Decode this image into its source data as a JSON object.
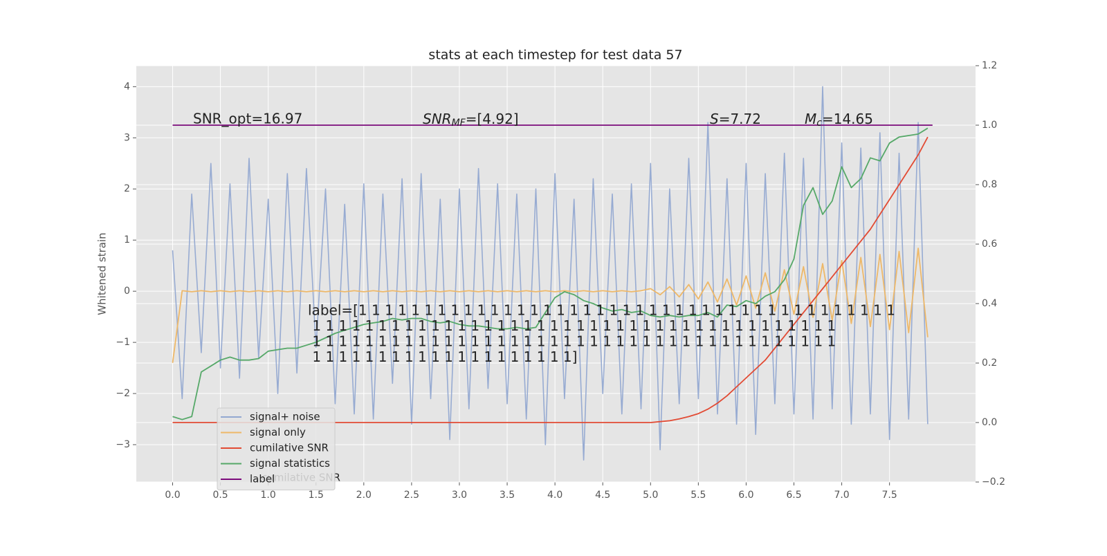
{
  "chart_data": {
    "type": "line",
    "title": "stats at each timestep for test data 57",
    "ylabel": "Whitened strain",
    "xlim": [
      -0.38,
      8.4
    ],
    "ylim": [
      -3.73,
      4.41
    ],
    "y2lim": [
      -0.2,
      1.2
    ],
    "xticks": [
      {
        "value": 0,
        "label": "0.0"
      },
      {
        "value": 0.5,
        "label": "0.5"
      },
      {
        "value": 1,
        "label": "1.0"
      },
      {
        "value": 1.5,
        "label": "1.5"
      },
      {
        "value": 2,
        "label": "2.0"
      },
      {
        "value": 2.5,
        "label": "2.5"
      },
      {
        "value": 3,
        "label": "3.0"
      },
      {
        "value": 3.5,
        "label": "3.5"
      },
      {
        "value": 4,
        "label": "4.0"
      },
      {
        "value": 4.5,
        "label": "4.5"
      },
      {
        "value": 5,
        "label": "5.0"
      },
      {
        "value": 5.5,
        "label": "5.5"
      },
      {
        "value": 6,
        "label": "6.0"
      },
      {
        "value": 6.5,
        "label": "6.5"
      },
      {
        "value": 7,
        "label": "7.0"
      },
      {
        "value": 7.5,
        "label": "7.5"
      }
    ],
    "yticks": [
      {
        "value": -3,
        "label": "−3"
      },
      {
        "value": -2,
        "label": "−2"
      },
      {
        "value": -1,
        "label": "−1"
      },
      0,
      1,
      2,
      3,
      4
    ],
    "y2ticks": [
      {
        "value": -0.2,
        "label": "−0.2"
      },
      {
        "value": 0,
        "label": "0.0"
      },
      {
        "value": 0.2,
        "label": "0.2"
      },
      {
        "value": 0.4,
        "label": "0.4"
      },
      {
        "value": 0.6,
        "label": "0.6"
      },
      {
        "value": 0.8,
        "label": "0.8"
      },
      {
        "value": 1,
        "label": "1.0"
      },
      {
        "value": 1.2,
        "label": "1.2"
      }
    ],
    "grid": true,
    "legend_loc": "lower left",
    "x": [
      0,
      0.1,
      0.2,
      0.3,
      0.4,
      0.5,
      0.6,
      0.7,
      0.8,
      0.9,
      1,
      1.1,
      1.2,
      1.3,
      1.4,
      1.5,
      1.6,
      1.7,
      1.8,
      1.9,
      2,
      2.1,
      2.2,
      2.3,
      2.4,
      2.5,
      2.6,
      2.7,
      2.8,
      2.9,
      3,
      3.1,
      3.2,
      3.3,
      3.4,
      3.5,
      3.6,
      3.7,
      3.8,
      3.9,
      4,
      4.1,
      4.2,
      4.3,
      4.4,
      4.5,
      4.6,
      4.7,
      4.8,
      4.9,
      5,
      5.1,
      5.2,
      5.3,
      5.4,
      5.5,
      5.6,
      5.7,
      5.8,
      5.9,
      6,
      6.1,
      6.2,
      6.3,
      6.4,
      6.5,
      6.6,
      6.7,
      6.8,
      6.9,
      7,
      7.1,
      7.2,
      7.3,
      7.4,
      7.5,
      7.6,
      7.7,
      7.8,
      7.9
    ],
    "series": [
      {
        "name": "signal+ noise",
        "color": "#92a8d1",
        "values": [
          0.8,
          -2.1,
          1.9,
          -1.2,
          2.5,
          -1.5,
          2.1,
          -1.7,
          2.6,
          -1.3,
          1.8,
          -2.0,
          2.3,
          -1.6,
          2.4,
          -1.1,
          2.0,
          -2.2,
          1.7,
          -2.4,
          2.1,
          -2.5,
          1.9,
          -1.8,
          2.2,
          -2.6,
          2.3,
          -2.1,
          1.8,
          -2.9,
          2.0,
          -2.3,
          2.4,
          -1.9,
          2.1,
          -2.2,
          1.9,
          -2.5,
          2.0,
          -3.0,
          2.3,
          -2.1,
          1.8,
          -3.3,
          2.2,
          -2.0,
          1.9,
          -2.4,
          2.1,
          -2.3,
          2.5,
          -3.1,
          2.0,
          -2.2,
          2.6,
          -2.1,
          3.3,
          -2.4,
          2.2,
          -2.6,
          2.5,
          -2.8,
          2.3,
          -2.2,
          2.7,
          -2.4,
          2.6,
          -2.5,
          4.0,
          -2.3,
          2.9,
          -2.6,
          2.8,
          -2.4,
          3.1,
          -2.9,
          2.7,
          -2.5,
          3.3,
          -2.6
        ]
      },
      {
        "name": "signal only",
        "color": "#eeb868",
        "values": [
          -1.4,
          0.01,
          -0.01,
          0.01,
          -0.01,
          0.01,
          -0.01,
          0.01,
          -0.01,
          0.01,
          -0.01,
          0.01,
          -0.01,
          0.01,
          -0.01,
          0.01,
          -0.01,
          0.01,
          -0.01,
          0.01,
          -0.01,
          0.01,
          -0.01,
          0.01,
          -0.01,
          0.01,
          -0.01,
          0.01,
          -0.01,
          0.01,
          -0.01,
          0.01,
          -0.01,
          0.01,
          -0.01,
          0.01,
          -0.01,
          0.01,
          -0.01,
          0.01,
          -0.01,
          0.01,
          -0.01,
          0.01,
          -0.01,
          0.01,
          -0.01,
          0.01,
          -0.01,
          0.01,
          0.05,
          -0.07,
          0.09,
          -0.11,
          0.13,
          -0.15,
          0.18,
          -0.21,
          0.24,
          -0.27,
          0.3,
          -0.33,
          0.36,
          -0.39,
          0.42,
          -0.45,
          0.48,
          -0.51,
          0.54,
          -0.57,
          0.6,
          -0.63,
          0.66,
          -0.69,
          0.72,
          -0.75,
          0.78,
          -0.81,
          0.84,
          -0.9
        ]
      },
      {
        "name": "cumilative SNR",
        "color": "#e24a33",
        "axis": "y2",
        "values": [
          0,
          0,
          0,
          0,
          0,
          0,
          0,
          0,
          0,
          0,
          0,
          0,
          0,
          0,
          0,
          0,
          0,
          0,
          0,
          0,
          0,
          0,
          0,
          0,
          0,
          0,
          0,
          0,
          0,
          0,
          0,
          0,
          0,
          0,
          0,
          0,
          0,
          0,
          0,
          0,
          0,
          0,
          0,
          0,
          0,
          0,
          0,
          0,
          0,
          0,
          0,
          0.003,
          0.006,
          0.012,
          0.02,
          0.03,
          0.045,
          0.065,
          0.09,
          0.12,
          0.15,
          0.18,
          0.21,
          0.25,
          0.29,
          0.33,
          0.37,
          0.41,
          0.45,
          0.49,
          0.53,
          0.57,
          0.61,
          0.65,
          0.7,
          0.75,
          0.8,
          0.85,
          0.9,
          0.96
        ]
      },
      {
        "name": "signal statistics",
        "color": "#55a868",
        "axis": "y2",
        "values": [
          0.02,
          0.01,
          0.02,
          0.17,
          0.19,
          0.21,
          0.22,
          0.21,
          0.21,
          0.215,
          0.24,
          0.245,
          0.25,
          0.25,
          0.26,
          0.27,
          0.285,
          0.3,
          0.31,
          0.32,
          0.33,
          0.335,
          0.34,
          0.35,
          0.345,
          0.35,
          0.35,
          0.34,
          0.335,
          0.34,
          0.33,
          0.325,
          0.325,
          0.32,
          0.315,
          0.315,
          0.32,
          0.315,
          0.32,
          0.37,
          0.42,
          0.44,
          0.43,
          0.41,
          0.4,
          0.385,
          0.375,
          0.38,
          0.37,
          0.375,
          0.36,
          0.355,
          0.36,
          0.355,
          0.36,
          0.36,
          0.37,
          0.355,
          0.395,
          0.39,
          0.41,
          0.4,
          0.425,
          0.44,
          0.48,
          0.55,
          0.73,
          0.79,
          0.7,
          0.745,
          0.86,
          0.79,
          0.82,
          0.89,
          0.88,
          0.94,
          0.96,
          0.965,
          0.97,
          0.99
        ]
      },
      {
        "name": "label",
        "color": "#7b0a7b",
        "axis": "y2",
        "x": [
          0,
          7.95
        ],
        "values": [
          1,
          1
        ]
      }
    ],
    "annotations": [
      {
        "text": "SNR_opt=16.97"
      },
      {
        "main": "SNR",
        "sub": "MF",
        "rest": "=[4.92]"
      },
      {
        "main": "S",
        "rest": "=7.72"
      },
      {
        "main": "M",
        "sub": "c",
        "rest": "=14.65"
      },
      {
        "lines": [
          "label=[1 1 1 1 1 1 1 1 1 1 1 1 1 1 1 1 1 1 1 1 1 1 1 1 1 1 1 1 1 1 1 1 1 1 1 1 1 1 1 1 1",
          " 1 1 1 1 1 1 1 1 1 1 1 1 1 1 1 1 1 1 1 1 1 1 1 1 1 1 1 1 1 1 1 1 1 1 1 1 1 1 1 1",
          " 1 1 1 1 1 1 1 1 1 1 1 1 1 1 1 1 1 1 1 1 1 1 1 1 1 1 1 1 1 1 1 1 1 1 1 1 1 1 1 1",
          " 1 1 1 1 1 1 1 1 1 1 1 1 1 1 1 1 1 1 1 1]"
        ]
      },
      {
        "text": "cumilative SNR"
      }
    ]
  }
}
